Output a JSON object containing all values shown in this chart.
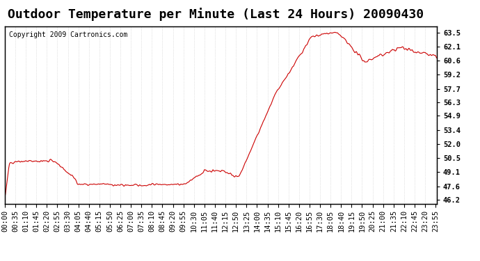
{
  "title": "Outdoor Temperature per Minute (Last 24 Hours) 20090430",
  "copyright": "Copyright 2009 Cartronics.com",
  "line_color": "#cc0000",
  "background_color": "#ffffff",
  "plot_bg_color": "#ffffff",
  "grid_color": "#bbbbbb",
  "yticks": [
    46.2,
    47.6,
    49.1,
    50.5,
    52.0,
    53.4,
    54.9,
    56.3,
    57.7,
    59.2,
    60.6,
    62.1,
    63.5
  ],
  "ylim": [
    45.8,
    64.2
  ],
  "xlabel": "",
  "ylabel": "",
  "title_fontsize": 13,
  "tick_fontsize": 7.5,
  "copyright_fontsize": 7
}
